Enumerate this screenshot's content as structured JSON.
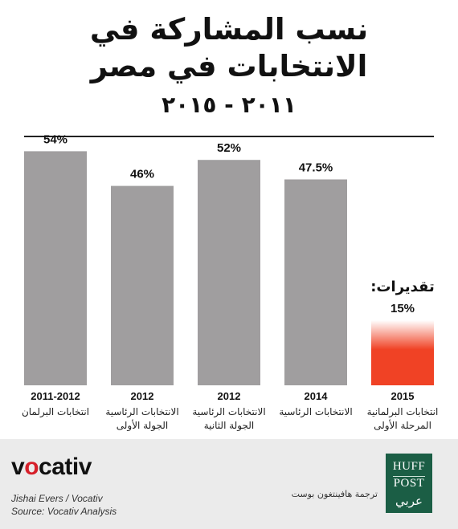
{
  "title": {
    "line1": "نسب المشاركة في",
    "line2": "الانتخابات في مصر",
    "subtitle": "٢٠١١ - ٢٠١٥"
  },
  "chart_data": {
    "type": "bar",
    "title": "نسب المشاركة في الانتخابات في مصر",
    "subtitle": "٢٠١١ - ٢٠١٥",
    "ylim": [
      0,
      60
    ],
    "grid": false,
    "categories": [
      {
        "year": "2011-2012",
        "label": "انتخابات البرلمان"
      },
      {
        "year": "2012",
        "label": "الانتخابات الرئاسية الجولة الأولى"
      },
      {
        "year": "2012",
        "label": "الانتخابات الرئاسية الجولة الثانية"
      },
      {
        "year": "2014",
        "label": "الانتخابات الرئاسية"
      },
      {
        "year": "2015",
        "label": "انتخابات البرلمانية المرحلة الأولى"
      }
    ],
    "values": [
      54,
      46,
      52,
      47.5,
      15
    ],
    "value_labels": [
      "54%",
      "46%",
      "52%",
      "47.5%",
      "15%"
    ],
    "annotation": "تقديرات:",
    "colors": {
      "bar": "#a09e9f",
      "estimate": "#f04225"
    }
  },
  "footer": {
    "brand_prefix": "v",
    "brand_o": "o",
    "brand_suffix": "cativ",
    "credit_author": "Jishai Evers / Vocativ",
    "credit_source": "Source: Vocativ Analysis",
    "translation": "ترجمة هافينتغون بوست",
    "huff_line1": "HUFF",
    "huff_line2": "POST",
    "huff_line3": "عربي",
    "huff_color": "#1b5e45"
  }
}
